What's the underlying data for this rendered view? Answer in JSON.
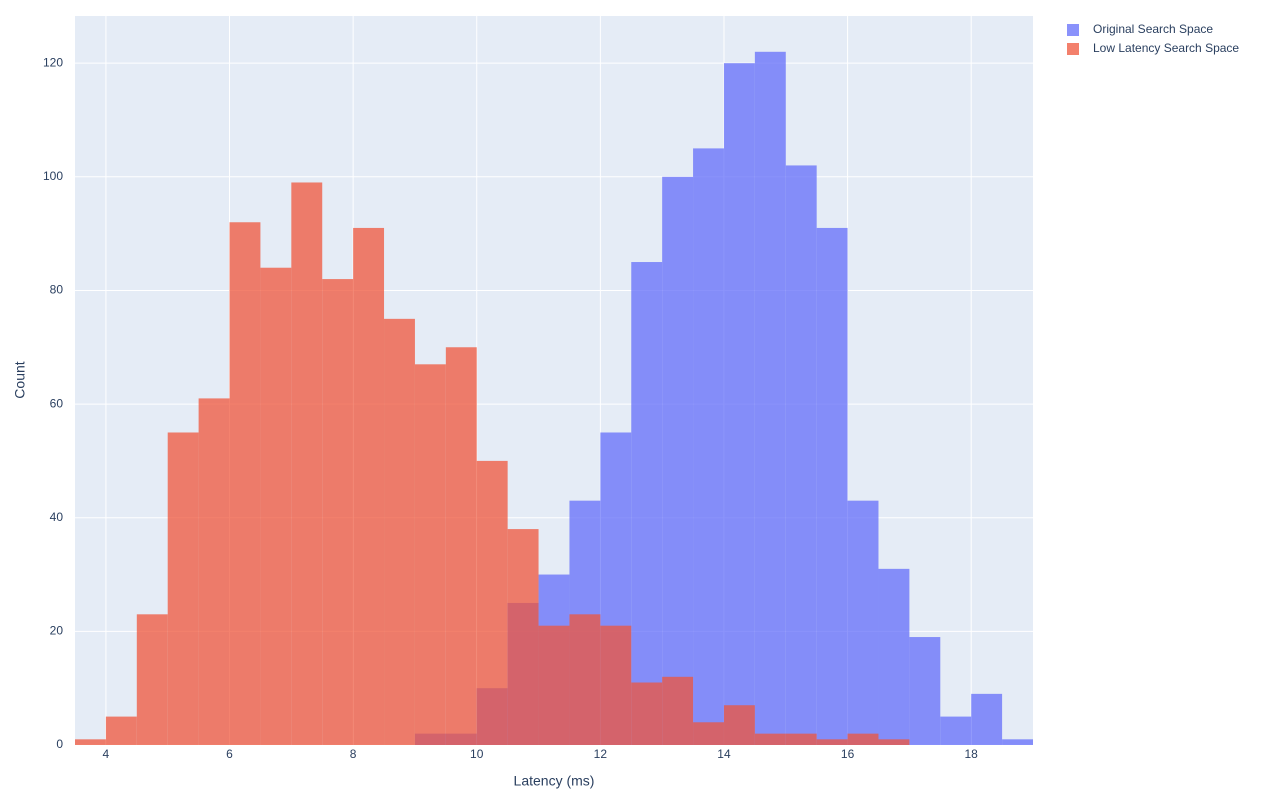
{
  "chart_data": {
    "type": "histogram",
    "x_label": "Latency (ms)",
    "y_label": "Count",
    "bins": [
      3.5,
      4,
      4.5,
      5,
      5.5,
      6,
      6.5,
      7,
      7.5,
      8,
      8.5,
      9,
      9.5,
      10,
      10.5,
      11,
      11.5,
      12,
      12.5,
      13,
      13.5,
      14,
      14.5,
      15,
      15.5,
      16,
      16.5,
      17,
      17.5,
      18,
      18.5,
      19
    ],
    "series": [
      {
        "name": "Original Search Space",
        "color": "#636efa",
        "values": [
          0,
          0,
          0,
          0,
          0,
          0,
          0,
          0,
          0,
          0,
          0,
          2,
          2,
          10,
          25,
          30,
          43,
          55,
          85,
          100,
          105,
          120,
          122,
          102,
          91,
          43,
          31,
          19,
          5,
          9,
          1
        ]
      },
      {
        "name": "Low Latency Search Space",
        "color": "#EF553B",
        "values": [
          1,
          5,
          23,
          55,
          61,
          92,
          84,
          99,
          82,
          91,
          75,
          67,
          70,
          50,
          38,
          21,
          23,
          21,
          11,
          12,
          4,
          7,
          2,
          2,
          1,
          2,
          1,
          0,
          0,
          0,
          0
        ]
      }
    ],
    "opacity": 0.75,
    "xlim": [
      3.5,
      19
    ],
    "xticks": [
      4,
      6,
      8,
      10,
      12,
      14,
      16,
      18
    ],
    "ylim": [
      0,
      128.3
    ],
    "yticks": [
      0,
      20,
      40,
      60,
      80,
      100,
      120
    ],
    "grid": true,
    "legend": "outside-top-right"
  }
}
